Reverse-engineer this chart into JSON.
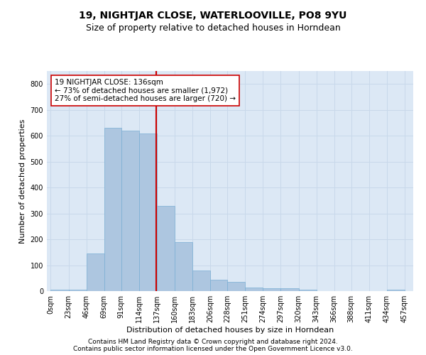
{
  "title": "19, NIGHTJAR CLOSE, WATERLOOVILLE, PO8 9YU",
  "subtitle": "Size of property relative to detached houses in Horndean",
  "xlabel": "Distribution of detached houses by size in Horndean",
  "ylabel": "Number of detached properties",
  "annotation_lines": [
    "19 NIGHTJAR CLOSE: 136sqm",
    "← 73% of detached houses are smaller (1,972)",
    "27% of semi-detached houses are larger (720) →"
  ],
  "bar_color": "#adc6e0",
  "bar_edge_color": "#7aafd4",
  "bar_left_edges": [
    0,
    23,
    46,
    69,
    91,
    114,
    137,
    160,
    183,
    206,
    228,
    251,
    274,
    297,
    320,
    343,
    366,
    388,
    411,
    434
  ],
  "bar_widths": [
    23,
    23,
    23,
    22,
    23,
    23,
    23,
    23,
    23,
    22,
    23,
    23,
    23,
    23,
    23,
    23,
    22,
    23,
    23,
    23
  ],
  "bar_heights": [
    5,
    5,
    145,
    630,
    620,
    610,
    330,
    190,
    80,
    45,
    35,
    15,
    10,
    10,
    5,
    0,
    0,
    0,
    0,
    5
  ],
  "tick_labels": [
    "0sqm",
    "23sqm",
    "46sqm",
    "69sqm",
    "91sqm",
    "114sqm",
    "137sqm",
    "160sqm",
    "183sqm",
    "206sqm",
    "228sqm",
    "251sqm",
    "274sqm",
    "297sqm",
    "320sqm",
    "343sqm",
    "366sqm",
    "388sqm",
    "411sqm",
    "434sqm",
    "457sqm"
  ],
  "tick_positions": [
    0,
    23,
    46,
    69,
    91,
    114,
    137,
    160,
    183,
    206,
    228,
    251,
    274,
    297,
    320,
    343,
    366,
    388,
    411,
    434,
    457
  ],
  "property_line_x": 136,
  "ylim": [
    0,
    850
  ],
  "yticks": [
    0,
    100,
    200,
    300,
    400,
    500,
    600,
    700,
    800
  ],
  "grid_color": "#c8d8ea",
  "background_color": "#dce8f5",
  "footer_line1": "Contains HM Land Registry data © Crown copyright and database right 2024.",
  "footer_line2": "Contains public sector information licensed under the Open Government Licence v3.0.",
  "annotation_box_color": "#ffffff",
  "annotation_box_edge_color": "#cc0000",
  "property_line_color": "#cc0000",
  "title_fontsize": 10,
  "subtitle_fontsize": 9,
  "axis_label_fontsize": 8,
  "tick_fontsize": 7,
  "annotation_fontsize": 7.5,
  "footer_fontsize": 6.5
}
